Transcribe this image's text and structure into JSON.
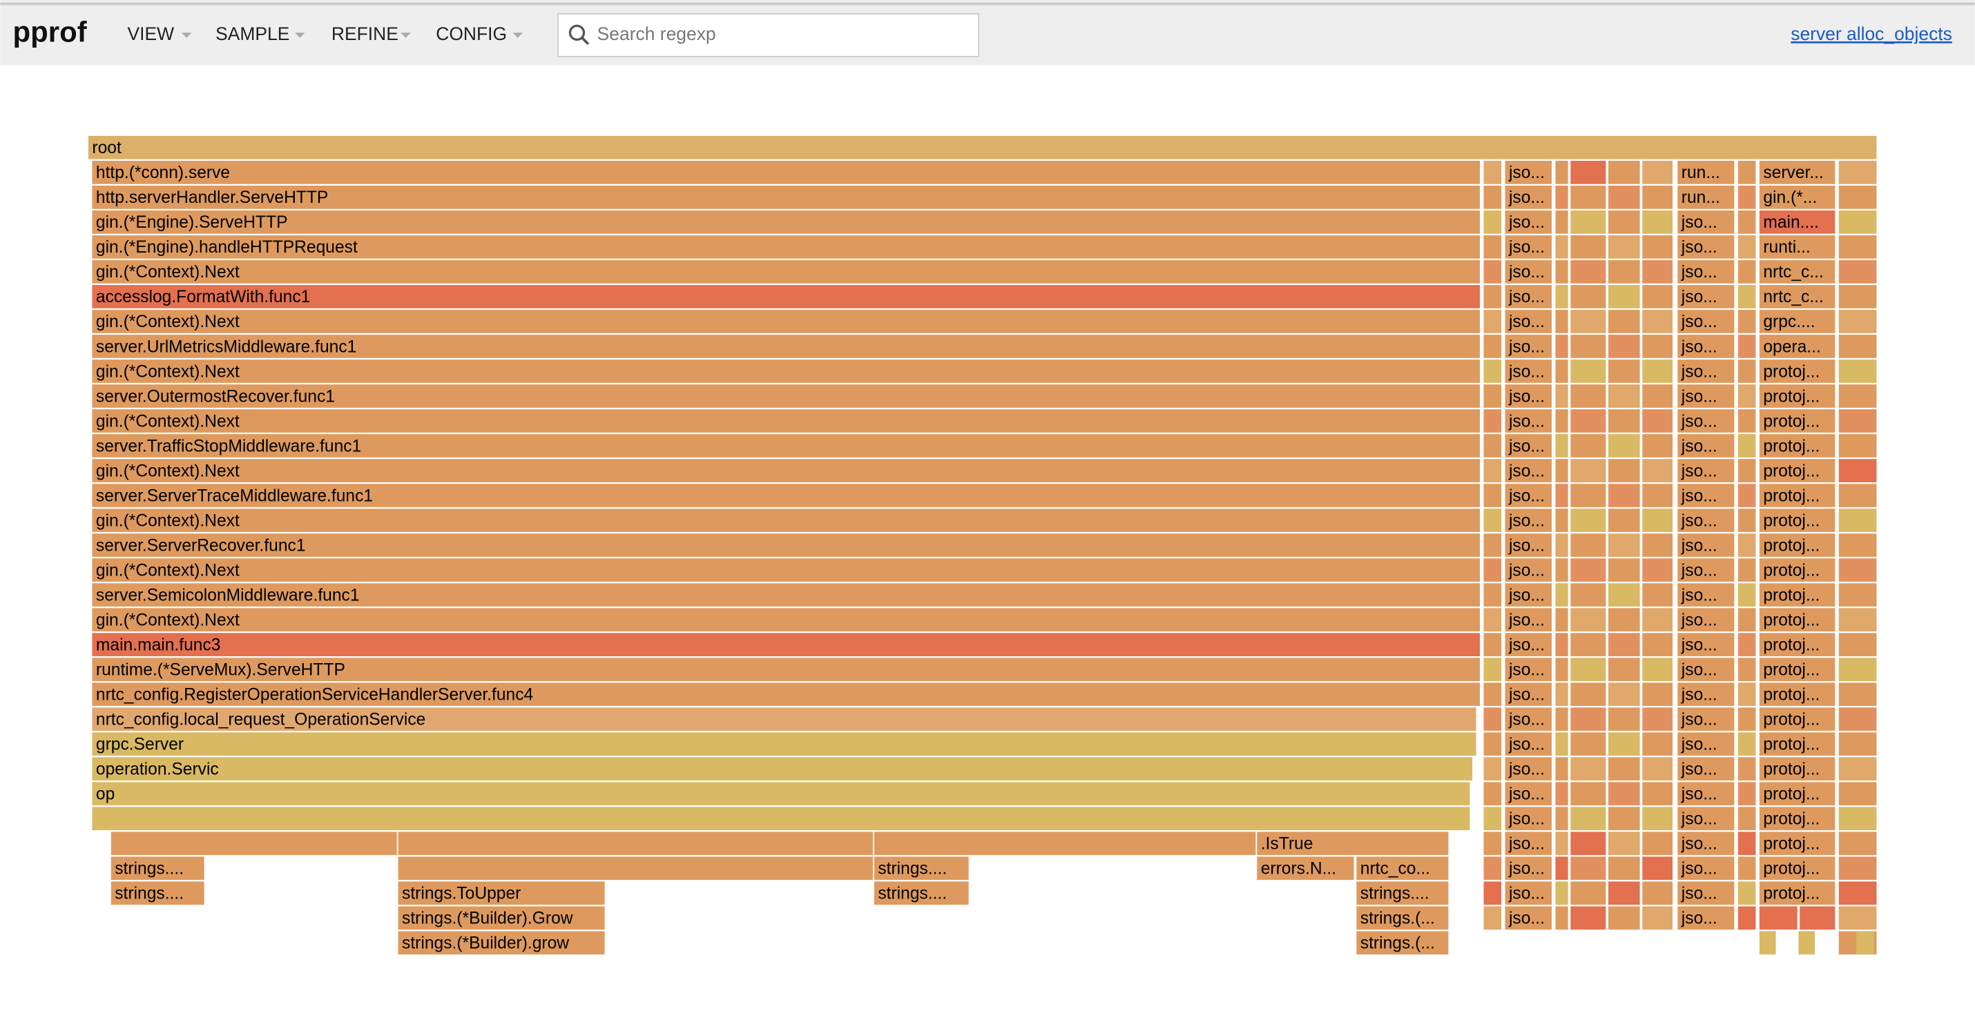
{
  "header": {
    "logo": "pprof",
    "menu": [
      "VIEW",
      "SAMPLE",
      "REFINE",
      "CONFIG"
    ],
    "search_placeholder": "Search regexp",
    "link": "server alloc_objects"
  },
  "flame": {
    "root": "root",
    "main": [
      "http.(*conn).serve",
      "http.serverHandler.ServeHTTP",
      "gin.(*Engine).ServeHTTP",
      "gin.(*Engine).handleHTTPRequest",
      "gin.(*Context).Next",
      "accesslog.FormatWith.func1",
      "gin.(*Context).Next",
      "server.UrlMetricsMiddleware.func1",
      "gin.(*Context).Next",
      "server.OutermostRecover.func1",
      "gin.(*Context).Next",
      "server.TrafficStopMiddleware.func1",
      "gin.(*Context).Next",
      "server.ServerTraceMiddleware.func1",
      "gin.(*Context).Next",
      "server.ServerRecover.func1",
      "gin.(*Context).Next",
      "server.SemicolonMiddleware.func1",
      "gin.(*Context).Next",
      "main.main.func3",
      "runtime.(*ServeMux).ServeHTTP",
      "nrtc_config.RegisterOperationServiceHandlerServer.func4",
      "nrtc_config.local_request_OperationService",
      "grpc.Server",
      "operation.Servic",
      "op"
    ],
    "col_a": [
      "jso...",
      "jso...",
      "jso...",
      "jso...",
      "jso...",
      "jso...",
      "jso...",
      "jso...",
      "jso...",
      "jso...",
      "jso...",
      "jso...",
      "jso...",
      "jso...",
      "jso...",
      "jso...",
      "jso...",
      "jso...",
      "jso...",
      "jso...",
      "jso...",
      "jso...",
      "jso...",
      "jso...",
      "jso...",
      "jso...",
      "jso...",
      "jso...",
      "jso...",
      "jso...",
      "jso..."
    ],
    "col_b": [
      "run...",
      "run...",
      "jso...",
      "jso...",
      "jso...",
      "jso...",
      "jso...",
      "jso...",
      "jso...",
      "jso...",
      "jso...",
      "jso...",
      "jso...",
      "jso...",
      "jso...",
      "jso...",
      "jso...",
      "jso...",
      "jso...",
      "jso...",
      "jso...",
      "jso...",
      "jso...",
      "jso...",
      "jso...",
      "jso...",
      "jso...",
      "jso...",
      "jso...",
      "jso...",
      "jso..."
    ],
    "col_c": [
      "server...",
      "gin.(*...",
      "main....",
      "runti...",
      "nrtc_c...",
      "nrtc_c...",
      "grpc....",
      "opera...",
      "protoj...",
      "protoj...",
      "protoj...",
      "protoj...",
      "protoj...",
      "protoj...",
      "protoj...",
      "protoj...",
      "protoj...",
      "protoj...",
      "protoj...",
      "protoj...",
      "protoj...",
      "protoj...",
      "protoj...",
      "protoj...",
      "protoj...",
      "protoj...",
      "protoj...",
      "protoj...",
      "protoj...",
      "protoj..."
    ],
    "lower": [
      ".IsTrue",
      "strings....",
      "strings....",
      "errors.N...",
      "nrtc_co...",
      "strings....",
      "strings.ToUpper",
      "strings....",
      "strings....",
      "strings.(*Builder).Grow",
      "strings.(...",
      "strings.(*Builder).grow",
      "strings.(..."
    ]
  }
}
